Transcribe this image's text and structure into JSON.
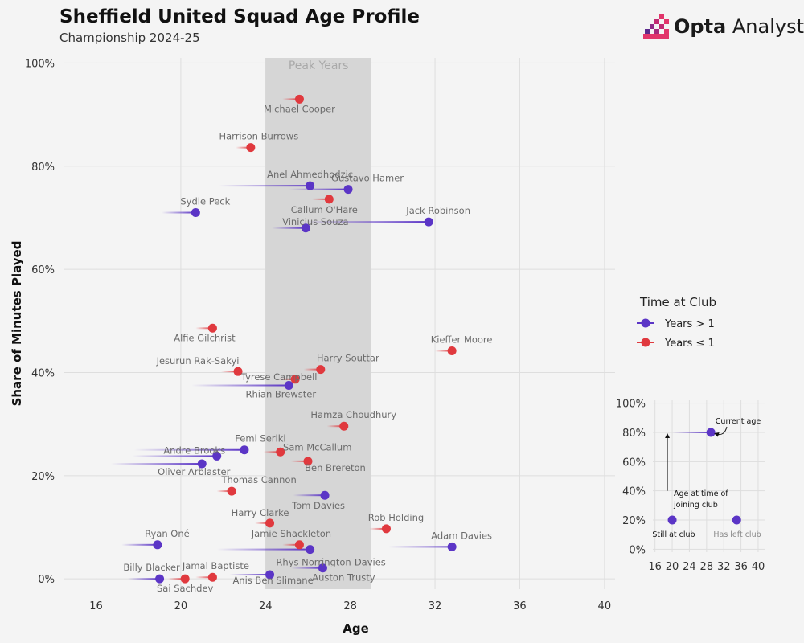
{
  "header": {
    "title": "Sheffield United Squad Age Profile",
    "subtitle": "Championship 2024-25",
    "brand_bold": "Opta",
    "brand_light": "Analyst"
  },
  "chart_data": [
    {
      "type": "scatter",
      "xlabel": "Age",
      "ylabel": "Share of Minutes Played",
      "xlim": [
        14.5,
        40.5
      ],
      "ylim": [
        -2,
        101
      ],
      "x_ticks": [
        16,
        20,
        24,
        28,
        32,
        36,
        40
      ],
      "y_ticks": [
        0,
        20,
        40,
        60,
        80,
        100
      ],
      "y_tick_labels": [
        "0%",
        "20%",
        "40%",
        "60%",
        "80%",
        "100%"
      ],
      "grid": true,
      "shaded_band": {
        "x": [
          24,
          29
        ],
        "label": "Peak Years"
      },
      "legend": {
        "title": "Time at Club",
        "position": "right",
        "entries": [
          {
            "label": "Years > 1",
            "color": "#5b35c6"
          },
          {
            "label": "Years ≤ 1",
            "color": "#e0393e"
          }
        ]
      },
      "series": [
        {
          "name": "Years > 1",
          "color": "#5b35c6",
          "points": [
            {
              "player": "Anel Ahmedhodzic",
              "join_age": 21.8,
              "age": 26.1,
              "share": 76.2
            },
            {
              "player": "Gustavo Hamer",
              "join_age": 25.1,
              "age": 27.9,
              "share": 75.5
            },
            {
              "player": "Sydie Peck",
              "join_age": 19.1,
              "age": 20.7,
              "share": 71.0
            },
            {
              "player": "Jack Robinson",
              "join_age": 25.7,
              "age": 31.7,
              "share": 69.2
            },
            {
              "player": "Vinicius Souza",
              "join_age": 24.3,
              "age": 25.9,
              "share": 68.0
            },
            {
              "player": "Rhian Brewster",
              "join_age": 20.5,
              "age": 25.1,
              "share": 37.5
            },
            {
              "player": "Femi Seriki",
              "join_age": 17.8,
              "age": 23.0,
              "share": 25.0
            },
            {
              "player": "Andre Brooks",
              "join_age": 17.7,
              "age": 21.7,
              "share": 23.8
            },
            {
              "player": "Oliver Arblaster",
              "join_age": 16.7,
              "age": 21.0,
              "share": 22.3
            },
            {
              "player": "Tom Davies",
              "join_age": 25.3,
              "age": 26.8,
              "share": 16.2
            },
            {
              "player": "Adam Davies",
              "join_age": 29.8,
              "age": 32.8,
              "share": 6.2
            },
            {
              "player": "Ryan Oné",
              "join_age": 17.2,
              "age": 18.9,
              "share": 6.6
            },
            {
              "player": "Rhys Norrington-Davies",
              "join_age": 21.7,
              "age": 26.1,
              "share": 5.7
            },
            {
              "player": "Auston Trusty",
              "join_age": 25.2,
              "age": 26.7,
              "share": 2.1
            },
            {
              "player": "Anis Ben Slimane",
              "join_age": 22.3,
              "age": 24.2,
              "share": 0.8
            },
            {
              "player": "Billy Blacker",
              "join_age": 17.5,
              "age": 19.0,
              "share": 0.0
            }
          ]
        },
        {
          "name": "Years ≤ 1",
          "color": "#e0393e",
          "points": [
            {
              "player": "Michael Cooper",
              "join_age": 24.8,
              "age": 25.6,
              "share": 93.0
            },
            {
              "player": "Harrison Burrows",
              "join_age": 22.6,
              "age": 23.3,
              "share": 83.6
            },
            {
              "player": "Callum O'Hare",
              "join_age": 26.2,
              "age": 27.0,
              "share": 73.6
            },
            {
              "player": "Alfie Gilchrist",
              "join_age": 20.7,
              "age": 21.5,
              "share": 48.6
            },
            {
              "player": "Kieffer Moore",
              "join_age": 32.0,
              "age": 32.8,
              "share": 44.2
            },
            {
              "player": "Jesurun Rak-Sakyi",
              "join_age": 21.9,
              "age": 22.7,
              "share": 40.2
            },
            {
              "player": "Harry Souttar",
              "join_age": 25.8,
              "age": 26.6,
              "share": 40.6
            },
            {
              "player": "Tyrese Campbell",
              "join_age": 24.6,
              "age": 25.4,
              "share": 38.7
            },
            {
              "player": "Hamza Choudhury",
              "join_age": 26.9,
              "age": 27.7,
              "share": 29.6
            },
            {
              "player": "Sam McCallum",
              "join_age": 23.9,
              "age": 24.7,
              "share": 24.6
            },
            {
              "player": "Ben Brereton",
              "join_age": 25.2,
              "age": 26.0,
              "share": 22.8
            },
            {
              "player": "Thomas Cannon",
              "join_age": 21.7,
              "age": 22.4,
              "share": 17.0
            },
            {
              "player": "Harry Clarke",
              "join_age": 23.5,
              "age": 24.2,
              "share": 10.8
            },
            {
              "player": "Rob Holding",
              "join_age": 28.9,
              "age": 29.7,
              "share": 9.7
            },
            {
              "player": "Jamie Shackleton",
              "join_age": 24.8,
              "age": 25.6,
              "share": 6.6
            },
            {
              "player": "Jamal Baptiste",
              "join_age": 20.7,
              "age": 21.5,
              "share": 0.3
            },
            {
              "player": "Sai Sachdev",
              "join_age": 19.4,
              "age": 20.2,
              "share": 0.0
            }
          ]
        }
      ]
    },
    {
      "type": "scatter",
      "xlim": [
        15.5,
        41.5
      ],
      "ylim": [
        -2,
        102
      ],
      "x_ticks": [
        16,
        20,
        24,
        28,
        32,
        36,
        40
      ],
      "y_ticks": [
        0,
        20,
        40,
        60,
        80,
        100
      ],
      "y_tick_labels": [
        "0%",
        "20%",
        "40%",
        "60%",
        "80%",
        "100%"
      ],
      "grid": true,
      "series": [
        {
          "name": "",
          "color": "#5b35c6",
          "points": [
            {
              "join_age": 20,
              "age": 29,
              "share": 80
            },
            {
              "join_age": 20,
              "age": 20,
              "share": 20
            },
            {
              "join_age": 35,
              "age": 35,
              "share": 20
            }
          ]
        }
      ],
      "annotations": {
        "current_age": "Current age",
        "age_at_joining": "Age at time of joining club",
        "still_at_club": "Still at club",
        "has_left_club": "Has left club"
      }
    }
  ]
}
